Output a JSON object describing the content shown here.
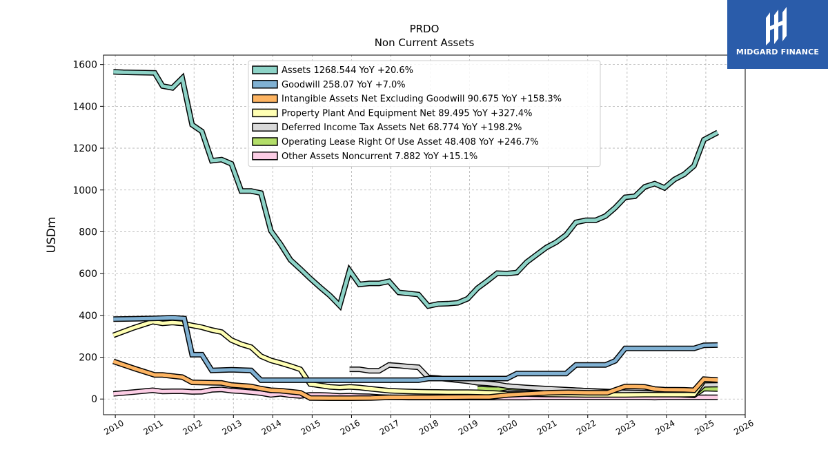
{
  "brand": {
    "name": "MIDGARD FINANCE",
    "bg_color": "#2a5caa",
    "icon": "midgard-logo-icon"
  },
  "chart_data": {
    "type": "line",
    "title": "PRDO",
    "subtitle": "Non Current  Assets",
    "xlabel": "",
    "ylabel": "USDm",
    "xlim": [
      2009.7,
      2026.0
    ],
    "ylim": [
      -75,
      1645
    ],
    "x_ticks": [
      "2010",
      "2011",
      "2012",
      "2013",
      "2014",
      "2015",
      "2016",
      "2017",
      "2018",
      "2019",
      "2020",
      "2021",
      "2022",
      "2023",
      "2024",
      "2025",
      "2026"
    ],
    "y_ticks": [
      "0",
      "200",
      "400",
      "600",
      "800",
      "1000",
      "1200",
      "1400",
      "1600"
    ],
    "grid": true,
    "legend_position": "top-center",
    "series": [
      {
        "name": "Assets  1268.544 YoY +20.6%",
        "color": "#8dd3c7",
        "points": [
          [
            2009.95,
            1565
          ],
          [
            2010.2,
            1563
          ],
          [
            2010.5,
            1562
          ],
          [
            2010.75,
            1561
          ],
          [
            2011.0,
            1560
          ],
          [
            2011.2,
            1497
          ],
          [
            2011.45,
            1488
          ],
          [
            2011.7,
            1535
          ],
          [
            2011.95,
            1312
          ],
          [
            2012.2,
            1280
          ],
          [
            2012.45,
            1140
          ],
          [
            2012.7,
            1145
          ],
          [
            2012.95,
            1125
          ],
          [
            2013.2,
            995
          ],
          [
            2013.45,
            995
          ],
          [
            2013.7,
            985
          ],
          [
            2013.95,
            805
          ],
          [
            2014.2,
            740
          ],
          [
            2014.45,
            665
          ],
          [
            2014.7,
            622
          ],
          [
            2014.95,
            577
          ],
          [
            2015.2,
            535
          ],
          [
            2015.45,
            495
          ],
          [
            2015.7,
            447
          ],
          [
            2015.95,
            615
          ],
          [
            2016.2,
            548
          ],
          [
            2016.45,
            553
          ],
          [
            2016.7,
            553
          ],
          [
            2016.95,
            563
          ],
          [
            2017.2,
            510
          ],
          [
            2017.45,
            505
          ],
          [
            2017.7,
            500
          ],
          [
            2017.95,
            445
          ],
          [
            2018.2,
            455
          ],
          [
            2018.45,
            456
          ],
          [
            2018.7,
            460
          ],
          [
            2018.95,
            480
          ],
          [
            2019.2,
            530
          ],
          [
            2019.45,
            565
          ],
          [
            2019.7,
            602
          ],
          [
            2019.95,
            600
          ],
          [
            2020.2,
            605
          ],
          [
            2020.45,
            655
          ],
          [
            2020.7,
            690
          ],
          [
            2020.95,
            725
          ],
          [
            2021.2,
            750
          ],
          [
            2021.45,
            785
          ],
          [
            2021.7,
            845
          ],
          [
            2021.95,
            855
          ],
          [
            2022.2,
            855
          ],
          [
            2022.45,
            875
          ],
          [
            2022.7,
            915
          ],
          [
            2022.95,
            965
          ],
          [
            2023.2,
            970
          ],
          [
            2023.45,
            1015
          ],
          [
            2023.7,
            1030
          ],
          [
            2023.95,
            1010
          ],
          [
            2024.2,
            1050
          ],
          [
            2024.45,
            1075
          ],
          [
            2024.7,
            1115
          ],
          [
            2024.95,
            1240
          ],
          [
            2025.3,
            1275
          ]
        ]
      },
      {
        "name": "Goodwill  258.07 YoY +7.0%",
        "color": "#80b1d3",
        "points": [
          [
            2009.95,
            382
          ],
          [
            2010.5,
            384
          ],
          [
            2011.0,
            386
          ],
          [
            2011.45,
            389
          ],
          [
            2011.75,
            385
          ],
          [
            2011.95,
            212
          ],
          [
            2012.2,
            212
          ],
          [
            2012.45,
            137
          ],
          [
            2012.95,
            140
          ],
          [
            2013.45,
            137
          ],
          [
            2013.7,
            90
          ],
          [
            2013.95,
            90
          ],
          [
            2015.7,
            90
          ],
          [
            2015.95,
            90
          ],
          [
            2017.7,
            90
          ],
          [
            2017.95,
            98
          ],
          [
            2019.7,
            98
          ],
          [
            2019.95,
            98
          ],
          [
            2020.2,
            122
          ],
          [
            2020.95,
            122
          ],
          [
            2021.45,
            122
          ],
          [
            2021.7,
            163
          ],
          [
            2021.95,
            163
          ],
          [
            2022.45,
            163
          ],
          [
            2022.7,
            183
          ],
          [
            2022.95,
            242
          ],
          [
            2023.45,
            242
          ],
          [
            2023.7,
            242
          ],
          [
            2023.95,
            242
          ],
          [
            2024.45,
            242
          ],
          [
            2024.7,
            242
          ],
          [
            2024.95,
            257
          ],
          [
            2025.3,
            258
          ]
        ]
      },
      {
        "name": "Intangible Assets Net Excluding Goodwill  90.675 YoY +158.3%",
        "color": "#fdb462",
        "points": [
          [
            2009.95,
            180
          ],
          [
            2010.5,
            145
          ],
          [
            2011.0,
            115
          ],
          [
            2011.2,
            115
          ],
          [
            2011.45,
            110
          ],
          [
            2011.7,
            105
          ],
          [
            2011.95,
            80
          ],
          [
            2012.45,
            78
          ],
          [
            2012.7,
            77
          ],
          [
            2012.95,
            67
          ],
          [
            2013.45,
            60
          ],
          [
            2013.7,
            50
          ],
          [
            2013.95,
            42
          ],
          [
            2014.2,
            40
          ],
          [
            2014.45,
            35
          ],
          [
            2014.7,
            30
          ],
          [
            2014.95,
            5
          ],
          [
            2015.45,
            4
          ],
          [
            2015.95,
            4
          ],
          [
            2016.5,
            5
          ],
          [
            2016.95,
            8
          ],
          [
            2018.0,
            8
          ],
          [
            2019.0,
            10
          ],
          [
            2019.5,
            10
          ],
          [
            2020.0,
            20
          ],
          [
            2020.5,
            25
          ],
          [
            2021.0,
            30
          ],
          [
            2021.5,
            32
          ],
          [
            2022.0,
            30
          ],
          [
            2022.5,
            30
          ],
          [
            2022.95,
            60
          ],
          [
            2023.2,
            60
          ],
          [
            2023.45,
            58
          ],
          [
            2023.7,
            48
          ],
          [
            2023.95,
            45
          ],
          [
            2024.45,
            44
          ],
          [
            2024.7,
            42
          ],
          [
            2024.95,
            95
          ],
          [
            2025.3,
            91
          ]
        ]
      },
      {
        "name": "Property Plant And Equipment Net  89.495 YoY +327.4%",
        "color": "#ffffb3",
        "points": [
          [
            2009.95,
            305
          ],
          [
            2010.45,
            340
          ],
          [
            2010.95,
            370
          ],
          [
            2011.2,
            362
          ],
          [
            2011.45,
            366
          ],
          [
            2011.7,
            362
          ],
          [
            2011.95,
            352
          ],
          [
            2012.2,
            343
          ],
          [
            2012.45,
            330
          ],
          [
            2012.7,
            320
          ],
          [
            2012.95,
            282
          ],
          [
            2013.2,
            262
          ],
          [
            2013.45,
            248
          ],
          [
            2013.7,
            205
          ],
          [
            2013.95,
            185
          ],
          [
            2014.2,
            172
          ],
          [
            2014.45,
            158
          ],
          [
            2014.7,
            142
          ],
          [
            2014.95,
            72
          ],
          [
            2015.2,
            65
          ],
          [
            2015.45,
            58
          ],
          [
            2015.7,
            55
          ],
          [
            2015.95,
            58
          ],
          [
            2016.2,
            55
          ],
          [
            2016.45,
            50
          ],
          [
            2016.7,
            45
          ],
          [
            2016.95,
            40
          ],
          [
            2017.2,
            38
          ],
          [
            2017.45,
            36
          ],
          [
            2017.7,
            35
          ],
          [
            2017.95,
            34
          ],
          [
            2018.45,
            33
          ],
          [
            2018.95,
            33
          ],
          [
            2019.2,
            32
          ],
          [
            2019.45,
            30
          ],
          [
            2019.7,
            28
          ],
          [
            2019.95,
            25
          ],
          [
            2020.45,
            24
          ],
          [
            2020.95,
            22
          ],
          [
            2021.45,
            21
          ],
          [
            2021.95,
            20
          ],
          [
            2022.45,
            20
          ],
          [
            2022.95,
            20
          ],
          [
            2023.45,
            21
          ],
          [
            2023.95,
            21
          ],
          [
            2024.45,
            21
          ],
          [
            2024.7,
            22
          ],
          [
            2024.95,
            88
          ],
          [
            2025.3,
            89
          ]
        ]
      },
      {
        "name": "Deferred Income Tax Assets Net  68.774 YoY +198.2%",
        "color": "#d9d9d9",
        "points": [
          [
            2015.95,
            142
          ],
          [
            2016.2,
            142
          ],
          [
            2016.45,
            135
          ],
          [
            2016.7,
            135
          ],
          [
            2016.95,
            163
          ],
          [
            2017.2,
            160
          ],
          [
            2017.45,
            155
          ],
          [
            2017.7,
            152
          ],
          [
            2017.95,
            103
          ],
          [
            2018.2,
            100
          ],
          [
            2018.45,
            95
          ],
          [
            2018.7,
            90
          ],
          [
            2018.95,
            85
          ],
          [
            2019.2,
            78
          ],
          [
            2019.45,
            75
          ],
          [
            2019.7,
            70
          ],
          [
            2019.95,
            62
          ],
          [
            2020.45,
            55
          ],
          [
            2020.95,
            50
          ],
          [
            2021.45,
            45
          ],
          [
            2021.95,
            40
          ],
          [
            2022.45,
            35
          ],
          [
            2022.95,
            32
          ],
          [
            2023.45,
            30
          ],
          [
            2023.95,
            25
          ],
          [
            2024.45,
            23
          ],
          [
            2024.7,
            23
          ],
          [
            2024.95,
            68
          ],
          [
            2025.3,
            69
          ]
        ]
      },
      {
        "name": "Operating Lease Right Of Use Asset  48.408 YoY +246.7%",
        "color": "#b3de69",
        "points": [
          [
            2019.2,
            50
          ],
          [
            2019.45,
            48
          ],
          [
            2019.7,
            47
          ],
          [
            2019.95,
            55
          ],
          [
            2020.2,
            53
          ],
          [
            2020.45,
            52
          ],
          [
            2020.7,
            50
          ],
          [
            2020.95,
            48
          ],
          [
            2021.45,
            44
          ],
          [
            2021.95,
            40
          ],
          [
            2022.45,
            36
          ],
          [
            2022.95,
            33
          ],
          [
            2023.45,
            30
          ],
          [
            2023.95,
            25
          ],
          [
            2024.45,
            20
          ],
          [
            2024.7,
            18
          ],
          [
            2024.95,
            50
          ],
          [
            2025.3,
            48
          ]
        ]
      },
      {
        "name": "Other Assets Noncurrent  7.882 YoY +15.1%",
        "color": "#fccde5",
        "points": [
          [
            2009.95,
            25
          ],
          [
            2010.45,
            33
          ],
          [
            2010.95,
            42
          ],
          [
            2011.2,
            36
          ],
          [
            2011.45,
            37
          ],
          [
            2011.7,
            37
          ],
          [
            2011.95,
            34
          ],
          [
            2012.2,
            35
          ],
          [
            2012.45,
            44
          ],
          [
            2012.7,
            46
          ],
          [
            2012.95,
            40
          ],
          [
            2013.2,
            37
          ],
          [
            2013.45,
            33
          ],
          [
            2013.7,
            28
          ],
          [
            2013.95,
            20
          ],
          [
            2014.2,
            25
          ],
          [
            2014.45,
            18
          ],
          [
            2014.7,
            15
          ],
          [
            2014.95,
            20
          ],
          [
            2015.2,
            20
          ],
          [
            2015.45,
            18
          ],
          [
            2015.7,
            15
          ],
          [
            2015.95,
            16
          ],
          [
            2016.2,
            14
          ],
          [
            2016.45,
            13
          ],
          [
            2016.7,
            10
          ],
          [
            2016.95,
            8
          ],
          [
            2017.45,
            7
          ],
          [
            2017.95,
            7
          ],
          [
            2018.45,
            7
          ],
          [
            2018.95,
            7
          ],
          [
            2019.45,
            7
          ],
          [
            2019.95,
            7
          ],
          [
            2020.45,
            7
          ],
          [
            2020.95,
            8
          ],
          [
            2021.45,
            8
          ],
          [
            2021.95,
            8
          ],
          [
            2022.45,
            8
          ],
          [
            2022.95,
            8
          ],
          [
            2023.45,
            8
          ],
          [
            2023.7,
            7
          ],
          [
            2023.95,
            8
          ],
          [
            2024.45,
            8
          ],
          [
            2024.95,
            8
          ],
          [
            2025.3,
            8
          ]
        ]
      }
    ]
  }
}
